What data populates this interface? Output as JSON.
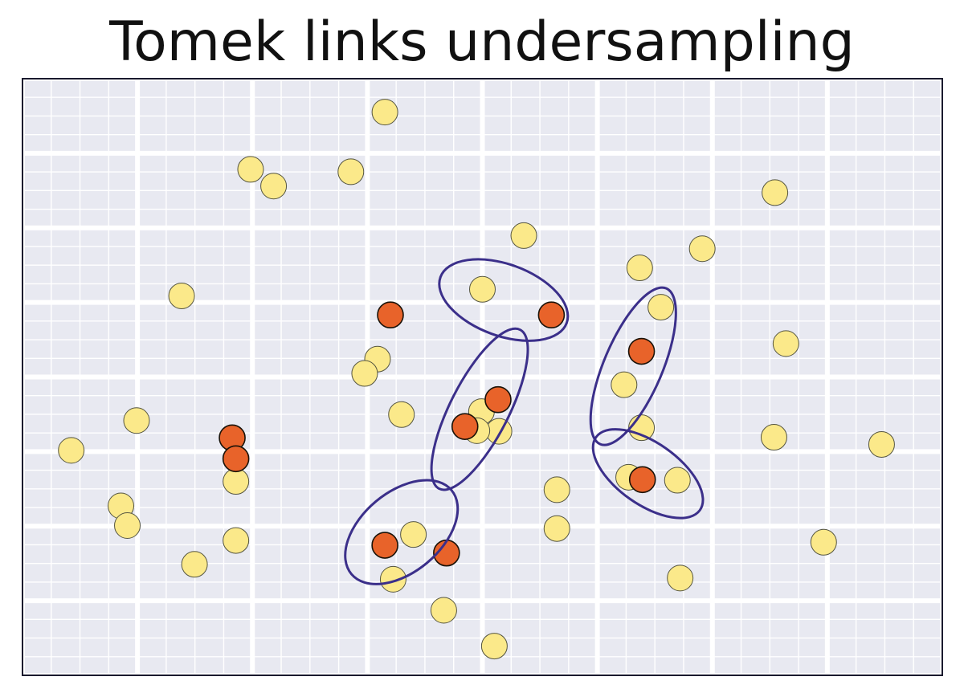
{
  "chart_data": {
    "type": "scatter",
    "title": "Tomek links undersampling",
    "xlabel": "",
    "ylabel": "",
    "xlim": [
      0,
      1
    ],
    "ylim": [
      0,
      1
    ],
    "grid": true,
    "series": [
      {
        "color": "#FBE98A",
        "points": [
          [
            0.394,
            0.944
          ],
          [
            0.248,
            0.848
          ],
          [
            0.273,
            0.82
          ],
          [
            0.357,
            0.844
          ],
          [
            0.173,
            0.636
          ],
          [
            0.818,
            0.809
          ],
          [
            0.545,
            0.737
          ],
          [
            0.671,
            0.683
          ],
          [
            0.739,
            0.715
          ],
          [
            0.5,
            0.647
          ],
          [
            0.694,
            0.617
          ],
          [
            0.83,
            0.556
          ],
          [
            0.386,
            0.53
          ],
          [
            0.372,
            0.506
          ],
          [
            0.654,
            0.487
          ],
          [
            0.412,
            0.437
          ],
          [
            0.499,
            0.442
          ],
          [
            0.518,
            0.409
          ],
          [
            0.494,
            0.41
          ],
          [
            0.673,
            0.415
          ],
          [
            0.124,
            0.427
          ],
          [
            0.053,
            0.377
          ],
          [
            0.817,
            0.399
          ],
          [
            0.934,
            0.387
          ],
          [
            0.232,
            0.325
          ],
          [
            0.659,
            0.332
          ],
          [
            0.712,
            0.327
          ],
          [
            0.581,
            0.311
          ],
          [
            0.107,
            0.284
          ],
          [
            0.114,
            0.251
          ],
          [
            0.581,
            0.246
          ],
          [
            0.425,
            0.236
          ],
          [
            0.232,
            0.226
          ],
          [
            0.187,
            0.186
          ],
          [
            0.403,
            0.161
          ],
          [
            0.871,
            0.223
          ],
          [
            0.715,
            0.163
          ],
          [
            0.458,
            0.109
          ],
          [
            0.513,
            0.049
          ]
        ]
      },
      {
        "color": "#E8632A",
        "points": [
          [
            0.4,
            0.604
          ],
          [
            0.575,
            0.604
          ],
          [
            0.673,
            0.543
          ],
          [
            0.517,
            0.462
          ],
          [
            0.481,
            0.417
          ],
          [
            0.228,
            0.398
          ],
          [
            0.232,
            0.363
          ],
          [
            0.674,
            0.328
          ],
          [
            0.394,
            0.218
          ],
          [
            0.461,
            0.205
          ]
        ]
      }
    ],
    "annotations": [
      {
        "type": "ellipse",
        "cx": 0.523,
        "cy": 0.629,
        "rx": 0.073,
        "ry": 0.06,
        "angle": 20
      },
      {
        "type": "ellipse",
        "cx": 0.664,
        "cy": 0.518,
        "rx": 0.092,
        "ry": 0.049,
        "angle": -67
      },
      {
        "type": "ellipse",
        "cx": 0.497,
        "cy": 0.446,
        "rx": 0.097,
        "ry": 0.049,
        "angle": -63
      },
      {
        "type": "ellipse",
        "cx": 0.68,
        "cy": 0.338,
        "rx": 0.069,
        "ry": 0.052,
        "angle": 35
      },
      {
        "type": "ellipse",
        "cx": 0.412,
        "cy": 0.24,
        "rx": 0.071,
        "ry": 0.067,
        "angle": -40
      }
    ],
    "colors": {
      "background": "#E8E9F1",
      "grid": "#FFFFFF",
      "frame": "#1A1A2E",
      "marker_edge": "#555540",
      "link_ellipse": "#3B2F8A"
    }
  }
}
